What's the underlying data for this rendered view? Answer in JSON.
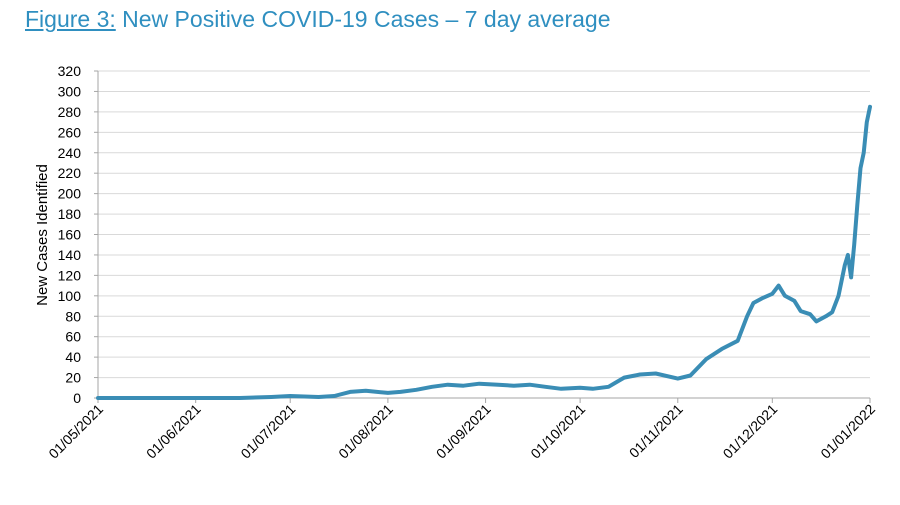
{
  "figure_label": "Figure 3:",
  "figure_title": "New Positive COVID-19 Cases – 7 day average",
  "colors": {
    "title": "#2f8fc0",
    "series": "#3a8db5",
    "grid": "#d9d9d9",
    "axis": "#a6a6a6"
  },
  "chart_data": {
    "type": "line",
    "title": "New Positive COVID-19 Cases – 7 day average",
    "ylabel": "New Cases Identified",
    "xlabel": "",
    "x_axis_type": "date",
    "xlim": [
      "2021-05-01",
      "2022-01-01"
    ],
    "ylim": [
      0,
      320
    ],
    "y_ticks": [
      0,
      20,
      40,
      60,
      80,
      100,
      120,
      140,
      160,
      180,
      200,
      220,
      240,
      260,
      280,
      300,
      320
    ],
    "x_tick_labels": [
      "01/05/2021",
      "01/06/2021",
      "01/07/2021",
      "01/08/2021",
      "01/09/2021",
      "01/10/2021",
      "01/11/2021",
      "01/12/2021",
      "01/01/2022"
    ],
    "grid": "horizontal",
    "legend": "none",
    "series": [
      {
        "x": [
          "2021-05-01",
          "2021-05-15",
          "2021-06-01",
          "2021-06-15",
          "2021-06-25",
          "2021-07-01",
          "2021-07-10",
          "2021-07-15",
          "2021-07-20",
          "2021-07-25",
          "2021-08-01",
          "2021-08-05",
          "2021-08-10",
          "2021-08-15",
          "2021-08-20",
          "2021-08-25",
          "2021-08-30",
          "2021-09-05",
          "2021-09-10",
          "2021-09-15",
          "2021-09-20",
          "2021-09-25",
          "2021-10-01",
          "2021-10-05",
          "2021-10-10",
          "2021-10-15",
          "2021-10-20",
          "2021-10-25",
          "2021-11-01",
          "2021-11-05",
          "2021-11-10",
          "2021-11-15",
          "2021-11-20",
          "2021-11-23",
          "2021-11-25",
          "2021-11-28",
          "2021-12-01",
          "2021-12-03",
          "2021-12-05",
          "2021-12-08",
          "2021-12-10",
          "2021-12-13",
          "2021-12-15",
          "2021-12-18",
          "2021-12-20",
          "2021-12-22",
          "2021-12-24",
          "2021-12-25",
          "2021-12-26",
          "2021-12-27",
          "2021-12-28",
          "2021-12-29",
          "2021-12-30",
          "2021-12-31",
          "2022-01-01"
        ],
        "y": [
          0,
          0,
          0,
          0,
          1,
          2,
          1,
          2,
          6,
          7,
          5,
          6,
          8,
          11,
          13,
          12,
          14,
          13,
          12,
          13,
          11,
          9,
          10,
          9,
          11,
          20,
          23,
          24,
          19,
          22,
          38,
          48,
          56,
          80,
          93,
          98,
          102,
          110,
          100,
          95,
          85,
          82,
          75,
          80,
          84,
          100,
          130,
          140,
          118,
          150,
          190,
          225,
          240,
          270,
          285
        ]
      }
    ]
  }
}
